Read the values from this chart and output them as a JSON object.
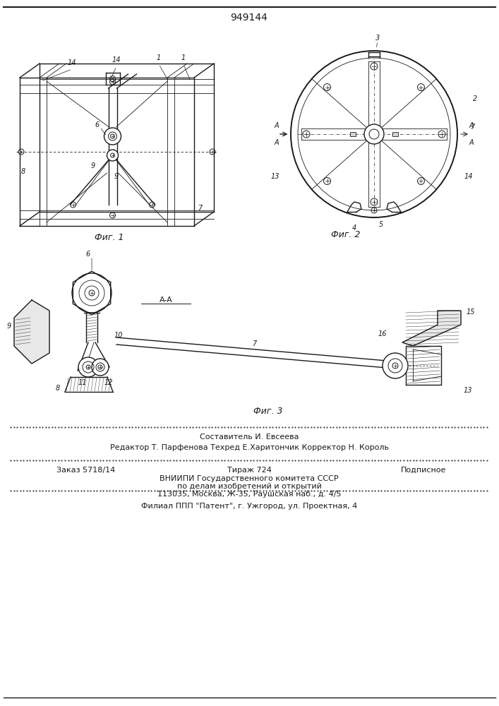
{
  "patent_number": "949144",
  "bg_color": "#ffffff",
  "line_color": "#1a1a1a",
  "fig1_label": "Фиг. 1",
  "fig2_label": "Фиг. 2",
  "fig3_label": "Фиг. 3",
  "section_label": "A-A",
  "footer_line1": "Составитель И. Евсеева",
  "footer_line2": "Редактор Т. Парфенова Техред Е.Харитончик Корректор Н. Король",
  "footer_order": "Заказ 5718/14",
  "footer_tirazh": "Тираж 724",
  "footer_podp": "Подписное",
  "footer_line4": "ВНИИПИ Государственного комитета СССР",
  "footer_line5": "по делам изобретений и открытий",
  "footer_line6": "113035, Москва, Ж-35, Раушская наб., д. 4/5",
  "footer_line7": "Филиал ППП \"Патент\", г. Ужгород, ул. Проектная, 4"
}
